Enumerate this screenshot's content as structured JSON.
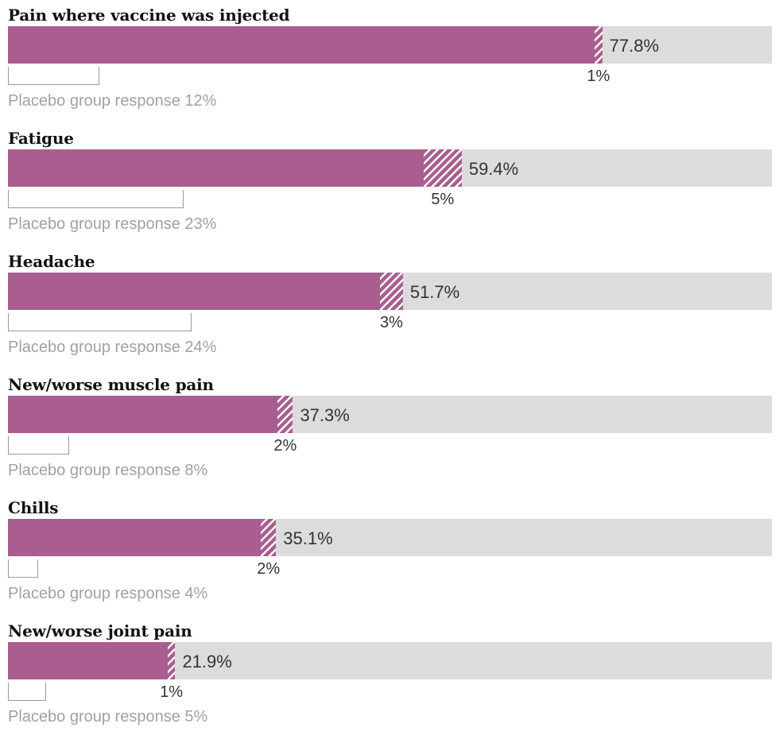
{
  "chart_data": {
    "type": "bar",
    "orientation": "horizontal",
    "title": "",
    "unit": "%",
    "axis_max": 100,
    "grid": false,
    "legend": "none",
    "bar_note": "solid bar = vaccine group response; hatched tip = severe portion; outlined bar = placebo group response",
    "rows": [
      {
        "category": "Pain where vaccine was injected",
        "vaccine_value": 77.8,
        "value_label": "77.8%",
        "severe_value": 1,
        "severe_label": "1%",
        "placebo_value": 12,
        "placebo_caption": "Placebo group response 12%"
      },
      {
        "category": "Fatigue",
        "vaccine_value": 59.4,
        "value_label": "59.4%",
        "severe_value": 5,
        "severe_label": "5%",
        "placebo_value": 23,
        "placebo_caption": "Placebo group response 23%"
      },
      {
        "category": "Headache",
        "vaccine_value": 51.7,
        "value_label": "51.7%",
        "severe_value": 3,
        "severe_label": "3%",
        "placebo_value": 24,
        "placebo_caption": "Placebo group response 24%"
      },
      {
        "category": "New/worse muscle pain",
        "vaccine_value": 37.3,
        "value_label": "37.3%",
        "severe_value": 2,
        "severe_label": "2%",
        "placebo_value": 8,
        "placebo_caption": "Placebo group response 8%"
      },
      {
        "category": "Chills",
        "vaccine_value": 35.1,
        "value_label": "35.1%",
        "severe_value": 2,
        "severe_label": "2%",
        "placebo_value": 4,
        "placebo_caption": "Placebo group response 4%"
      },
      {
        "category": "New/worse joint pain",
        "vaccine_value": 21.9,
        "value_label": "21.9%",
        "severe_value": 1,
        "severe_label": "1%",
        "placebo_value": 5,
        "placebo_caption": "Placebo group response 5%"
      }
    ]
  },
  "colors": {
    "bar": "#a95e8f",
    "track": "#dcdcdc",
    "hatch_line": "#ffffff",
    "placebo_border": "#9a9a9a",
    "title_text": "#121212",
    "value_text": "#333333",
    "caption_text": "#a1a1a1"
  }
}
